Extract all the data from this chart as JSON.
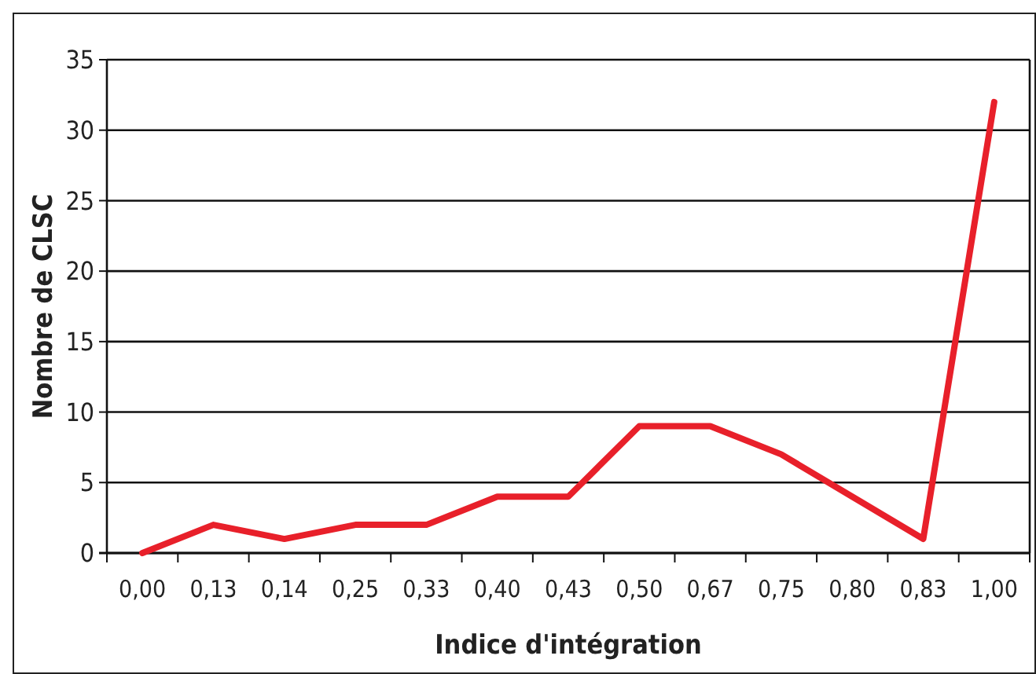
{
  "chart_data": {
    "type": "line",
    "xlabel": "Indice d'intégration",
    "ylabel": "Nombre de CLSC",
    "categories": [
      "0,00",
      "0,13",
      "0,14",
      "0,25",
      "0,33",
      "0,40",
      "0,43",
      "0,50",
      "0,67",
      "0,75",
      "0,80",
      "0,83",
      "1,00"
    ],
    "series": [
      {
        "color": "#e8202a",
        "values": [
          0,
          2,
          1,
          2,
          2,
          4,
          4,
          9,
          9,
          7,
          4,
          1,
          32
        ]
      }
    ],
    "ylim": [
      0,
      35
    ],
    "yticks": [
      0,
      5,
      10,
      15,
      20,
      25,
      30,
      35
    ],
    "grid": "y",
    "marker": "none",
    "line_style": "solid"
  }
}
